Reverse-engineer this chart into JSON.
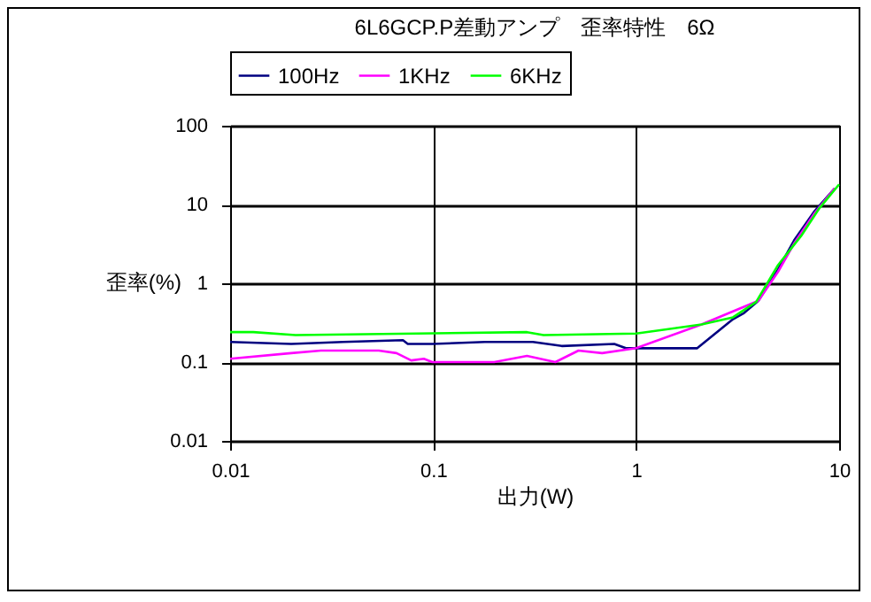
{
  "chart_data": {
    "type": "line",
    "title": "6L6GCP.P差動アンプ　歪率特性　6Ω",
    "xlabel": "出力(W)",
    "ylabel": "歪率(%)",
    "log": "xy",
    "grid": true,
    "legend": "top",
    "line_style": "solid",
    "marker": "none",
    "xlim": [
      0.01,
      10
    ],
    "xticks": [
      0.01,
      0.1,
      1,
      10
    ],
    "ylim": [
      0.01,
      100
    ],
    "yticks": [
      0.01,
      0.1,
      1,
      10,
      100
    ],
    "series": [
      {
        "name": "100Hz",
        "color": "#000080",
        "x": [
          0.01,
          0.02,
          0.036,
          0.071,
          0.075,
          0.099,
          0.18,
          0.31,
          0.43,
          0.78,
          0.89,
          2.0,
          3.0,
          3.4,
          4.0,
          5.0,
          6.0,
          7.5,
          9.5
        ],
        "values": [
          0.18,
          0.17,
          0.18,
          0.19,
          0.17,
          0.17,
          0.18,
          0.18,
          0.16,
          0.17,
          0.15,
          0.15,
          0.35,
          0.42,
          0.6,
          1.5,
          3.5,
          8,
          16
        ]
      },
      {
        "name": "1KHz",
        "color": "#ff00ff",
        "x": [
          0.01,
          0.02,
          0.028,
          0.054,
          0.066,
          0.078,
          0.09,
          0.099,
          0.2,
          0.29,
          0.4,
          0.52,
          0.68,
          1.0,
          2.1,
          4.0,
          5.0,
          6.0,
          7.5,
          9.5
        ],
        "values": [
          0.11,
          0.13,
          0.14,
          0.14,
          0.13,
          0.105,
          0.11,
          0.1,
          0.1,
          0.12,
          0.1,
          0.14,
          0.13,
          0.15,
          0.3,
          0.6,
          1.4,
          3.2,
          7.5,
          16
        ]
      },
      {
        "name": "6KHz",
        "color": "#00ff00",
        "x": [
          0.01,
          0.013,
          0.021,
          0.29,
          0.35,
          1.0,
          2.1,
          3.0,
          3.9,
          5.0,
          6.5,
          8.0,
          10
        ],
        "values": [
          0.24,
          0.24,
          0.22,
          0.24,
          0.22,
          0.23,
          0.3,
          0.37,
          0.58,
          1.7,
          4,
          9,
          18
        ]
      }
    ]
  }
}
